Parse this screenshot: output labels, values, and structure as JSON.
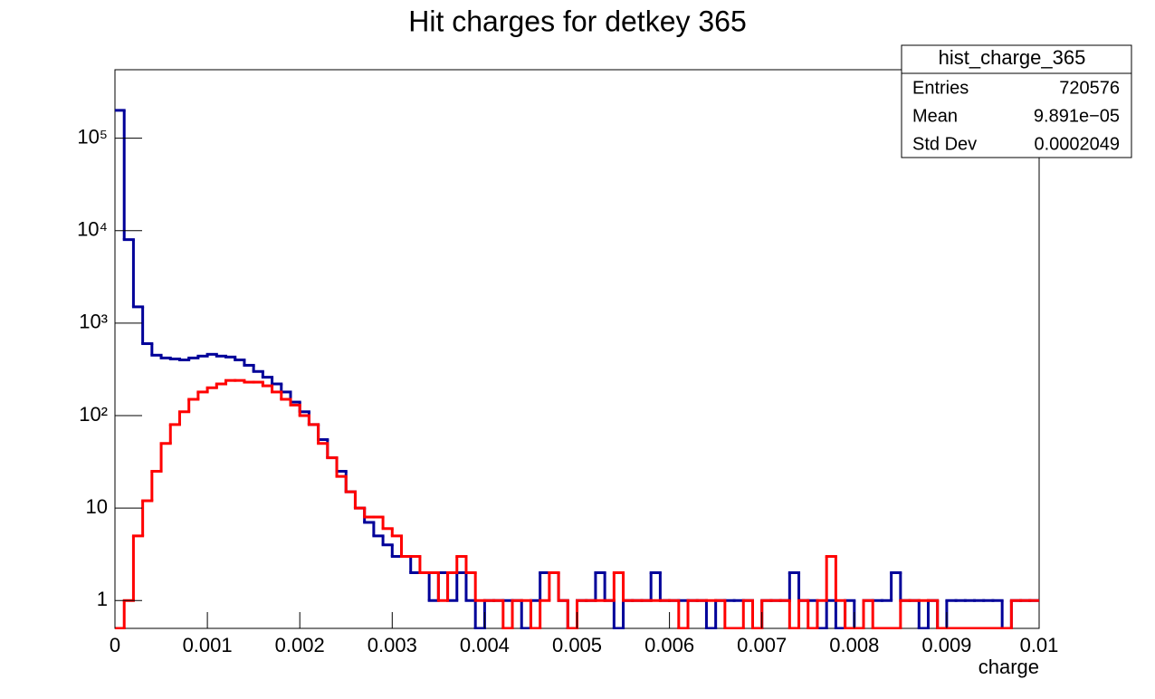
{
  "chart_data": {
    "type": "histogram",
    "title": "Hit charges for detkey 365",
    "xlabel": "charge",
    "bins": [
      0,
      0.0001,
      0.0002,
      0.0003,
      0.0004,
      0.0005,
      0.0006,
      0.0007,
      0.0008,
      0.0009,
      0.001,
      0.0011,
      0.0012,
      0.0013,
      0.0014,
      0.0015,
      0.0016,
      0.0017,
      0.0018,
      0.0019,
      0.002,
      0.0021,
      0.0022,
      0.0023,
      0.0024,
      0.0025,
      0.0026,
      0.0027,
      0.0028,
      0.0029,
      0.003,
      0.0031,
      0.0032,
      0.0033,
      0.0034,
      0.0035,
      0.0036,
      0.0037,
      0.0038,
      0.0039,
      0.004,
      0.0041,
      0.0042,
      0.0043,
      0.0044,
      0.0045,
      0.0046,
      0.0047,
      0.0048,
      0.0049,
      0.005,
      0.0051,
      0.0052,
      0.0053,
      0.0054,
      0.0055,
      0.0056,
      0.0057,
      0.0058,
      0.0059,
      0.006,
      0.0061,
      0.0062,
      0.0063,
      0.0064,
      0.0065,
      0.0066,
      0.0067,
      0.0068,
      0.0069,
      0.007,
      0.0071,
      0.0072,
      0.0073,
      0.0074,
      0.0075,
      0.0076,
      0.0077,
      0.0078,
      0.0079,
      0.008,
      0.0081,
      0.0082,
      0.0083,
      0.0084,
      0.0085,
      0.0086,
      0.0087,
      0.0088,
      0.0089,
      0.009,
      0.0091,
      0.0092,
      0.0093,
      0.0094,
      0.0095,
      0.0096,
      0.0097,
      0.0098,
      0.0099,
      0.01
    ],
    "series": [
      {
        "color": "#000099",
        "values": [
          200000,
          8000,
          1500,
          600,
          450,
          420,
          410,
          400,
          420,
          440,
          460,
          440,
          430,
          400,
          350,
          300,
          260,
          220,
          180,
          140,
          110,
          80,
          55,
          35,
          25,
          15,
          10,
          7,
          5,
          4,
          3,
          3,
          2,
          2,
          1,
          2,
          1,
          2,
          1,
          0,
          1,
          1,
          1,
          1,
          0,
          1,
          2,
          2,
          1,
          0,
          1,
          1,
          2,
          1,
          0,
          1,
          1,
          1,
          2,
          1,
          1,
          1,
          1,
          1,
          0,
          1,
          1,
          1,
          1,
          0,
          1,
          1,
          1,
          2,
          1,
          1,
          0,
          1,
          0,
          1,
          0,
          1,
          1,
          1,
          2,
          1,
          1,
          0,
          1,
          0,
          1,
          1,
          1,
          1,
          1,
          1,
          0,
          1,
          1,
          1
        ]
      },
      {
        "color": "#ff0000",
        "values": [
          0,
          1,
          5,
          12,
          25,
          50,
          80,
          110,
          150,
          180,
          200,
          220,
          240,
          240,
          230,
          230,
          210,
          180,
          150,
          130,
          100,
          80,
          50,
          35,
          22,
          15,
          10,
          8,
          8,
          6,
          5,
          3,
          3,
          2,
          2,
          1,
          2,
          3,
          2,
          1,
          1,
          1,
          0,
          1,
          1,
          0,
          1,
          2,
          1,
          0,
          1,
          1,
          1,
          1,
          2,
          1,
          1,
          1,
          1,
          1,
          1,
          0,
          1,
          1,
          1,
          1,
          0,
          0,
          1,
          0,
          1,
          1,
          1,
          0,
          1,
          0,
          1,
          3,
          1,
          0,
          0,
          1,
          0,
          0,
          0,
          1,
          1,
          1,
          1,
          0,
          0,
          0,
          0,
          0,
          0,
          0,
          0,
          1,
          1,
          1
        ]
      }
    ],
    "xlim": [
      0,
      0.01
    ],
    "xticks": [
      0,
      0.001,
      0.002,
      0.003,
      0.004,
      0.005,
      0.006,
      0.007,
      0.008,
      0.009,
      0.01
    ],
    "ylim": [
      0.5,
      550000
    ],
    "log_y": true,
    "yticks": [
      1,
      10,
      {
        "value": 100,
        "label": "10²"
      },
      {
        "value": 1000,
        "label": "10³"
      },
      {
        "value": 10000,
        "label": "10⁴"
      },
      {
        "value": 100000,
        "label": "10⁵"
      }
    ],
    "stats": {
      "title": "hist_charge_365",
      "rows": [
        [
          "Entries",
          "720576"
        ],
        [
          "Mean",
          "9.891e−05"
        ],
        [
          "Std Dev",
          "0.0002049"
        ]
      ]
    }
  }
}
